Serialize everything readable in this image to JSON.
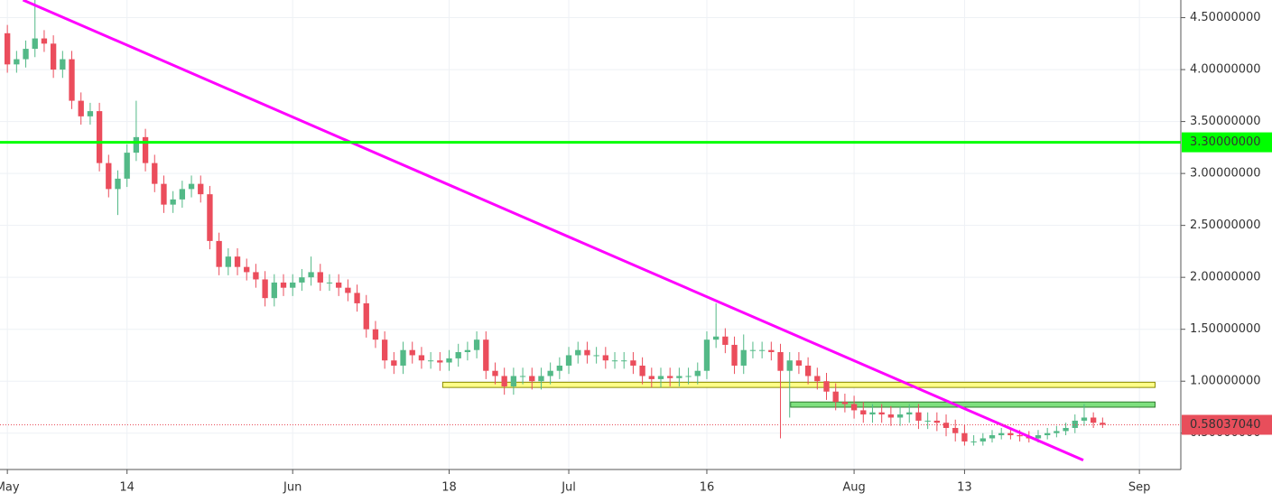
{
  "chart_data": {
    "type": "candlestick",
    "x": [
      0,
      1,
      2,
      3,
      4,
      5,
      6,
      7,
      8,
      9,
      10,
      11,
      12,
      13,
      14,
      15,
      16,
      17,
      18,
      19,
      20,
      21,
      22,
      23,
      24,
      25,
      26,
      27,
      28,
      29,
      30,
      31,
      32,
      33,
      34,
      35,
      36,
      37,
      38,
      39,
      40,
      41,
      42,
      43,
      44,
      45,
      46,
      47,
      48,
      49,
      50,
      51,
      52,
      53,
      54,
      55,
      56,
      57,
      58,
      59,
      60,
      61,
      62,
      63,
      64,
      65,
      66,
      67,
      68,
      69,
      70,
      71,
      72,
      73,
      74,
      75,
      76,
      77,
      78,
      79,
      80,
      81,
      82,
      83,
      84,
      85,
      86,
      87,
      88,
      89,
      90,
      91,
      92,
      93,
      94,
      95,
      96,
      97,
      98,
      99,
      100,
      101,
      102,
      103,
      104,
      105,
      106,
      107,
      108,
      109,
      110,
      111,
      112,
      113,
      114,
      115,
      116,
      117,
      118,
      119
    ],
    "open": [
      4.35,
      4.05,
      4.1,
      4.2,
      4.3,
      4.25,
      4.0,
      4.1,
      3.7,
      3.55,
      3.6,
      3.1,
      2.85,
      2.95,
      3.2,
      3.35,
      3.1,
      2.9,
      2.7,
      2.75,
      2.85,
      2.9,
      2.8,
      2.35,
      2.1,
      2.2,
      2.1,
      2.05,
      1.98,
      1.8,
      1.95,
      1.9,
      1.95,
      2.0,
      2.05,
      1.95,
      1.95,
      1.9,
      1.85,
      1.75,
      1.5,
      1.4,
      1.2,
      1.15,
      1.3,
      1.25,
      1.2,
      1.2,
      1.18,
      1.22,
      1.28,
      1.3,
      1.4,
      1.1,
      1.05,
      0.95,
      1.05,
      1.05,
      1.0,
      1.05,
      1.1,
      1.15,
      1.25,
      1.3,
      1.25,
      1.25,
      1.2,
      1.2,
      1.2,
      1.15,
      1.05,
      1.02,
      1.05,
      1.03,
      1.05,
      1.05,
      1.1,
      1.4,
      1.43,
      1.35,
      1.15,
      1.3,
      1.3,
      1.3,
      1.28,
      1.1,
      1.2,
      1.15,
      1.05,
      1.0,
      0.9,
      0.8,
      0.78,
      0.72,
      0.68,
      0.7,
      0.68,
      0.65,
      0.68,
      0.7,
      0.62,
      0.62,
      0.6,
      0.55,
      0.5,
      0.42,
      0.42,
      0.45,
      0.48,
      0.5,
      0.48,
      0.47,
      0.45,
      0.48,
      0.5,
      0.52,
      0.55,
      0.62,
      0.65,
      0.6
    ],
    "high": [
      4.43,
      4.18,
      4.28,
      4.7,
      4.38,
      4.33,
      4.18,
      4.18,
      3.78,
      3.68,
      3.68,
      3.18,
      3.03,
      3.28,
      3.7,
      3.43,
      3.18,
      2.98,
      2.83,
      2.93,
      2.98,
      2.98,
      2.88,
      2.43,
      2.28,
      2.28,
      2.18,
      2.13,
      2.06,
      2.03,
      2.03,
      2.03,
      2.08,
      2.2,
      2.13,
      2.03,
      2.03,
      1.98,
      1.93,
      1.83,
      1.58,
      1.48,
      1.28,
      1.38,
      1.38,
      1.33,
      1.28,
      1.28,
      1.3,
      1.36,
      1.38,
      1.48,
      1.48,
      1.18,
      1.13,
      1.13,
      1.13,
      1.13,
      1.13,
      1.18,
      1.23,
      1.33,
      1.38,
      1.38,
      1.33,
      1.33,
      1.28,
      1.28,
      1.28,
      1.23,
      1.13,
      1.13,
      1.13,
      1.13,
      1.13,
      1.18,
      1.48,
      1.75,
      1.51,
      1.43,
      1.45,
      1.38,
      1.38,
      1.38,
      1.36,
      1.28,
      1.28,
      1.23,
      1.13,
      1.08,
      0.98,
      0.88,
      0.86,
      0.8,
      0.78,
      0.78,
      0.76,
      0.76,
      0.78,
      0.78,
      0.7,
      0.7,
      0.68,
      0.63,
      0.58,
      0.48,
      0.5,
      0.53,
      0.55,
      0.55,
      0.53,
      0.52,
      0.53,
      0.55,
      0.57,
      0.6,
      0.68,
      0.78,
      0.7,
      0.65
    ],
    "low": [
      3.97,
      3.97,
      4.02,
      4.12,
      4.17,
      3.92,
      3.92,
      3.62,
      3.47,
      3.47,
      3.02,
      2.77,
      2.6,
      2.87,
      3.12,
      3.02,
      2.82,
      2.62,
      2.62,
      2.67,
      2.77,
      2.72,
      2.27,
      2.02,
      2.02,
      2.02,
      1.97,
      1.9,
      1.72,
      1.72,
      1.82,
      1.82,
      1.87,
      1.92,
      1.87,
      1.87,
      1.82,
      1.77,
      1.67,
      1.42,
      1.32,
      1.12,
      1.07,
      1.07,
      1.17,
      1.12,
      1.12,
      1.1,
      1.1,
      1.14,
      1.2,
      1.22,
      1.02,
      0.97,
      0.87,
      0.87,
      0.97,
      0.92,
      0.92,
      0.97,
      1.02,
      1.07,
      1.17,
      1.17,
      1.17,
      1.12,
      1.12,
      1.12,
      1.07,
      0.97,
      0.94,
      0.94,
      0.95,
      0.95,
      0.97,
      0.97,
      1.02,
      1.32,
      1.27,
      1.07,
      1.07,
      1.22,
      1.22,
      1.2,
      0.45,
      0.65,
      1.07,
      0.97,
      0.92,
      0.82,
      0.72,
      0.7,
      0.64,
      0.6,
      0.6,
      0.6,
      0.57,
      0.57,
      0.6,
      0.54,
      0.54,
      0.52,
      0.47,
      0.42,
      0.38,
      0.38,
      0.38,
      0.41,
      0.44,
      0.44,
      0.42,
      0.41,
      0.41,
      0.44,
      0.46,
      0.48,
      0.5,
      0.57,
      0.55,
      0.55
    ],
    "close": [
      4.05,
      4.1,
      4.2,
      4.3,
      4.25,
      4.0,
      4.1,
      3.7,
      3.55,
      3.6,
      3.1,
      2.85,
      2.95,
      3.2,
      3.35,
      3.1,
      2.9,
      2.7,
      2.75,
      2.85,
      2.9,
      2.8,
      2.35,
      2.1,
      2.2,
      2.1,
      2.05,
      1.98,
      1.8,
      1.95,
      1.9,
      1.95,
      2.0,
      2.05,
      1.95,
      1.95,
      1.9,
      1.85,
      1.75,
      1.5,
      1.4,
      1.2,
      1.15,
      1.3,
      1.25,
      1.2,
      1.2,
      1.18,
      1.22,
      1.28,
      1.3,
      1.4,
      1.1,
      1.05,
      0.95,
      1.05,
      1.05,
      1.0,
      1.05,
      1.1,
      1.15,
      1.25,
      1.3,
      1.25,
      1.25,
      1.2,
      1.2,
      1.2,
      1.15,
      1.05,
      1.02,
      1.05,
      1.03,
      1.05,
      1.05,
      1.1,
      1.4,
      1.43,
      1.35,
      1.15,
      1.3,
      1.3,
      1.3,
      1.28,
      1.1,
      1.2,
      1.15,
      1.05,
      1.0,
      0.9,
      0.8,
      0.78,
      0.72,
      0.68,
      0.7,
      0.68,
      0.65,
      0.68,
      0.7,
      0.62,
      0.62,
      0.6,
      0.55,
      0.5,
      0.42,
      0.42,
      0.45,
      0.48,
      0.5,
      0.48,
      0.47,
      0.45,
      0.48,
      0.5,
      0.52,
      0.55,
      0.62,
      0.65,
      0.6,
      0.58
    ],
    "up_color": "#53b987",
    "down_color": "#eb4d5c",
    "xlim": [
      -0.8,
      127.5
    ],
    "ylim": [
      0.15,
      4.67
    ],
    "xticks": [
      {
        "value": 0,
        "label": "May"
      },
      {
        "value": 13,
        "label": "14"
      },
      {
        "value": 31,
        "label": "Jun"
      },
      {
        "value": 48,
        "label": "18"
      },
      {
        "value": 61,
        "label": "Jul"
      },
      {
        "value": 76,
        "label": "16"
      },
      {
        "value": 92,
        "label": "Aug"
      },
      {
        "value": 104,
        "label": "13"
      },
      {
        "value": 123,
        "label": "Sep"
      }
    ],
    "yticks": [
      {
        "value": 0.5,
        "label": "0.50000000"
      },
      {
        "value": 1.0,
        "label": "1.00000000"
      },
      {
        "value": 1.5,
        "label": "1.50000000"
      },
      {
        "value": 2.0,
        "label": "2.00000000"
      },
      {
        "value": 2.5,
        "label": "2.50000000"
      },
      {
        "value": 3.0,
        "label": "3.00000000"
      },
      {
        "value": 3.5,
        "label": "3.50000000"
      },
      {
        "value": 4.0,
        "label": "4.00000000"
      },
      {
        "value": 4.5,
        "label": "4.50000000"
      }
    ],
    "grid": true,
    "trendline": {
      "x": [
        1.7,
        116.9
      ],
      "y": [
        4.67,
        0.24
      ],
      "color": "#ff00ff"
    },
    "hline": {
      "value": 3.3,
      "label": "3.30000000",
      "color": "#00ff00"
    },
    "zones": [
      {
        "x": [
          47.3,
          124.7
        ],
        "y": [
          0.94,
          0.99
        ],
        "color": "#ffff88",
        "stroke": "#8a8a00"
      },
      {
        "x": [
          85.1,
          124.7
        ],
        "y": [
          0.75,
          0.8
        ],
        "color": "#7ee07e",
        "stroke": "#2d7a2d"
      }
    ],
    "last_price": {
      "value": 0.5803704,
      "label": "0.58037040",
      "color": "#e84e5b"
    }
  }
}
